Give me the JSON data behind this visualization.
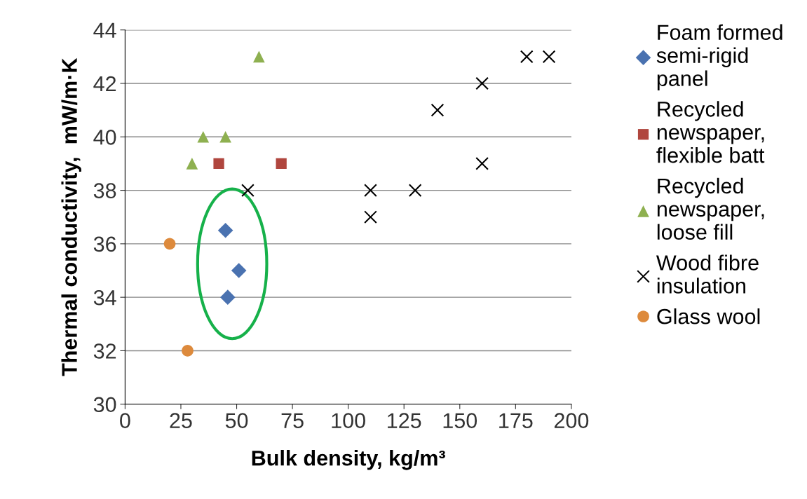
{
  "chart_data": {
    "type": "scatter",
    "xlabel": "Bulk density, kg/m³",
    "ylabel": "Thermal conductivity,  mW/m·K",
    "xlim": [
      0,
      200
    ],
    "xticks": [
      0,
      25,
      50,
      75,
      100,
      125,
      150,
      175,
      200
    ],
    "ylim": [
      30,
      44
    ],
    "yticks": [
      30,
      32,
      34,
      36,
      38,
      40,
      42,
      44
    ],
    "grid": "y",
    "legend": "right",
    "series": [
      {
        "name": "Foam formed\nsemi-rigid\npanel",
        "color": "#4a72b0",
        "marker": "diamond",
        "x": [
          45,
          51,
          46
        ],
        "values": [
          36.5,
          35,
          34
        ]
      },
      {
        "name": "Recycled\nnewspaper,\nflexible batt",
        "color": "#b0463e",
        "marker": "square",
        "x": [
          42,
          70
        ],
        "values": [
          39,
          39
        ]
      },
      {
        "name": "Recycled\nnewspaper,\nloose fill",
        "color": "#8eb050",
        "marker": "triangle",
        "x": [
          30,
          35,
          45,
          60
        ],
        "values": [
          39,
          40,
          40,
          43
        ]
      },
      {
        "name": "Wood fibre\ninsulation",
        "color": "#000000",
        "marker": "cross",
        "x": [
          55,
          110,
          110,
          130,
          140,
          160,
          160,
          180,
          190
        ],
        "values": [
          38,
          38,
          37,
          38,
          41,
          42,
          39,
          43,
          43
        ]
      },
      {
        "name": "Glass wool",
        "color": "#dd8a3c",
        "marker": "circle",
        "x": [
          20,
          28
        ],
        "values": [
          36,
          32
        ]
      }
    ]
  }
}
